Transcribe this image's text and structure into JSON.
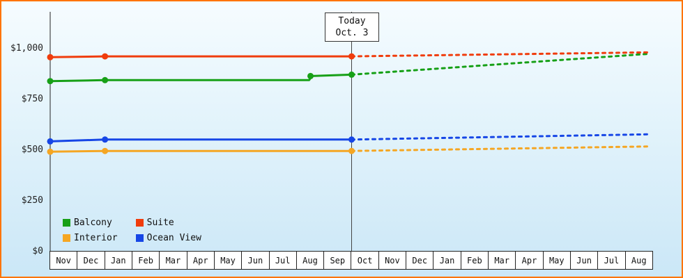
{
  "page": {
    "border_color": "#ff7400",
    "bg_top": "#f6fcff",
    "bg_bottom": "#cbe7f7"
  },
  "chart_data": {
    "type": "line",
    "title": "",
    "xlabel": "",
    "ylabel": "",
    "ylim": [
      0,
      1180
    ],
    "grid": false,
    "legend_position": "bottom-left-inside",
    "y_ticks": [
      {
        "value": 0,
        "label": "$0"
      },
      {
        "value": 250,
        "label": "$250"
      },
      {
        "value": 500,
        "label": "$500"
      },
      {
        "value": 750,
        "label": "$750"
      },
      {
        "value": 1000,
        "label": "$1,000"
      }
    ],
    "x_months": [
      "Nov",
      "Dec",
      "Jan",
      "Feb",
      "Mar",
      "Apr",
      "May",
      "Jun",
      "Jul",
      "Aug",
      "Sep",
      "Oct",
      "Nov",
      "Dec",
      "Jan",
      "Feb",
      "Mar",
      "Apr",
      "May",
      "Jun",
      "Jul",
      "Aug"
    ],
    "x_count": 22,
    "today": {
      "x": 11,
      "label_line1": "Today",
      "label_line2": "Oct. 3",
      "line_color": "#444444"
    },
    "series": [
      {
        "name": "Interior",
        "color": "#f5a623",
        "solid": [
          [
            0,
            492
          ],
          [
            2,
            496
          ],
          [
            11,
            496
          ]
        ],
        "markers": [
          [
            0,
            492
          ],
          [
            2,
            496
          ],
          [
            11,
            496
          ]
        ],
        "dotted": [
          [
            11,
            496
          ],
          [
            21.9,
            518
          ]
        ]
      },
      {
        "name": "Ocean View",
        "color": "#1646e6",
        "solid": [
          [
            0,
            543
          ],
          [
            2,
            552
          ],
          [
            11,
            552
          ]
        ],
        "markers": [
          [
            0,
            543
          ],
          [
            2,
            552
          ],
          [
            11,
            552
          ]
        ],
        "dotted": [
          [
            11,
            552
          ],
          [
            21.9,
            578
          ]
        ]
      },
      {
        "name": "Balcony",
        "color": "#17a017",
        "solid": [
          [
            0,
            840
          ],
          [
            2,
            845
          ],
          [
            9.45,
            845
          ],
          [
            9.55,
            865
          ],
          [
            11,
            872
          ]
        ],
        "markers": [
          [
            0,
            840
          ],
          [
            2,
            845
          ],
          [
            9.5,
            865
          ],
          [
            11,
            872
          ]
        ],
        "dotted": [
          [
            11,
            872
          ],
          [
            21.9,
            975
          ]
        ]
      },
      {
        "name": "Suite",
        "color": "#f03c0c",
        "solid": [
          [
            0,
            958
          ],
          [
            2,
            962
          ],
          [
            11,
            962
          ]
        ],
        "markers": [
          [
            0,
            958
          ],
          [
            2,
            962
          ],
          [
            11,
            962
          ]
        ],
        "dotted": [
          [
            11,
            962
          ],
          [
            21.9,
            982
          ]
        ]
      }
    ],
    "legend": {
      "items": [
        {
          "label": "Balcony",
          "color": "#17a017"
        },
        {
          "label": "Suite",
          "color": "#f03c0c"
        },
        {
          "label": "Interior",
          "color": "#f5a623"
        },
        {
          "label": "Ocean View",
          "color": "#1646e6"
        }
      ]
    }
  }
}
